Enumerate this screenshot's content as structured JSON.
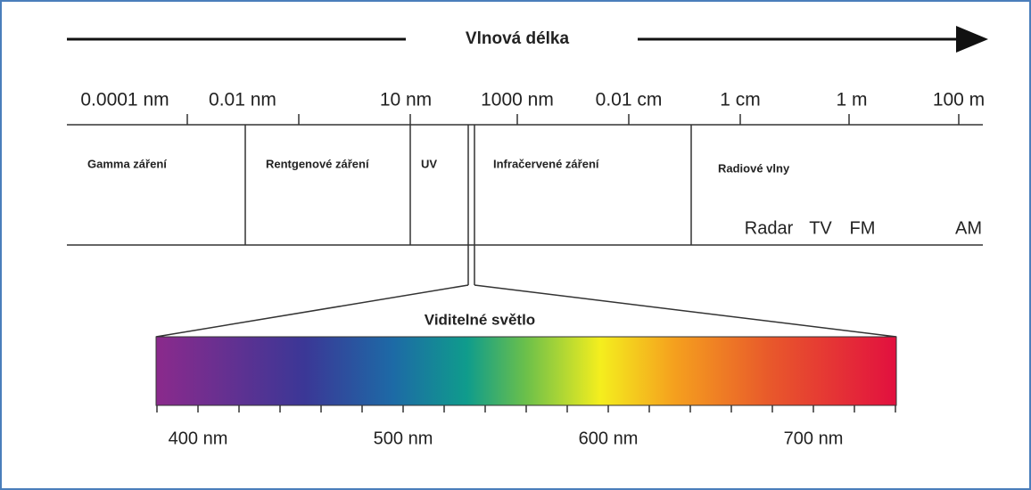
{
  "title": "Vlnová délka",
  "scale": [
    "0.0001 nm",
    "0.01 nm",
    "10 nm",
    "1000 nm",
    "0.01 cm",
    "1 cm",
    "1 m",
    "100 m"
  ],
  "regions": [
    "Gamma záření",
    "Rentgenové záření",
    "UV",
    "Infračervené záření",
    "Radiové vlny"
  ],
  "radio_bands": [
    "Radar",
    "TV",
    "FM",
    "AM"
  ],
  "visible": {
    "title": "Viditelné světlo",
    "ticks": [
      "400 nm",
      "500 nm",
      "600 nm",
      "700 nm"
    ]
  }
}
